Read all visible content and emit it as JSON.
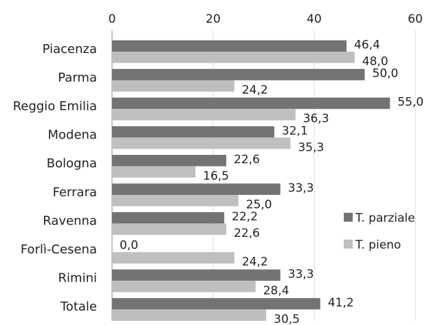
{
  "chart_data": {
    "type": "bar",
    "orientation": "horizontal",
    "categories": [
      "Piacenza",
      "Parma",
      "Reggio Emilia",
      "Modena",
      "Bologna",
      "Ferrara",
      "Ravenna",
      "Forlì-Cesena",
      "Rimini",
      "Totale"
    ],
    "series": [
      {
        "name": "T. parziale",
        "color": "#737373",
        "values": [
          46.4,
          50.0,
          55.0,
          32.1,
          22.6,
          33.3,
          22.2,
          0.0,
          33.3,
          41.2
        ],
        "labels": [
          "46,4",
          "50,0",
          "55,0",
          "32,1",
          "22,6",
          "33,3",
          "22,2",
          "0,0",
          "33,3",
          "41,2"
        ]
      },
      {
        "name": "T. pieno",
        "color": "#bfbfbf",
        "values": [
          48.0,
          24.2,
          36.3,
          35.3,
          16.5,
          25.0,
          22.6,
          24.2,
          28.4,
          30.5
        ],
        "labels": [
          "48,0",
          "24,2",
          "36,3",
          "35,3",
          "16,5",
          "25,0",
          "22,6",
          "24,2",
          "28,4",
          "30,5"
        ]
      }
    ],
    "xlim": [
      0,
      60
    ],
    "ticks": [
      0,
      20,
      40,
      60
    ],
    "tick_labels": [
      "0",
      "20",
      "40",
      "60"
    ],
    "axis_position": "top",
    "grid": true,
    "legend_position": "right"
  }
}
